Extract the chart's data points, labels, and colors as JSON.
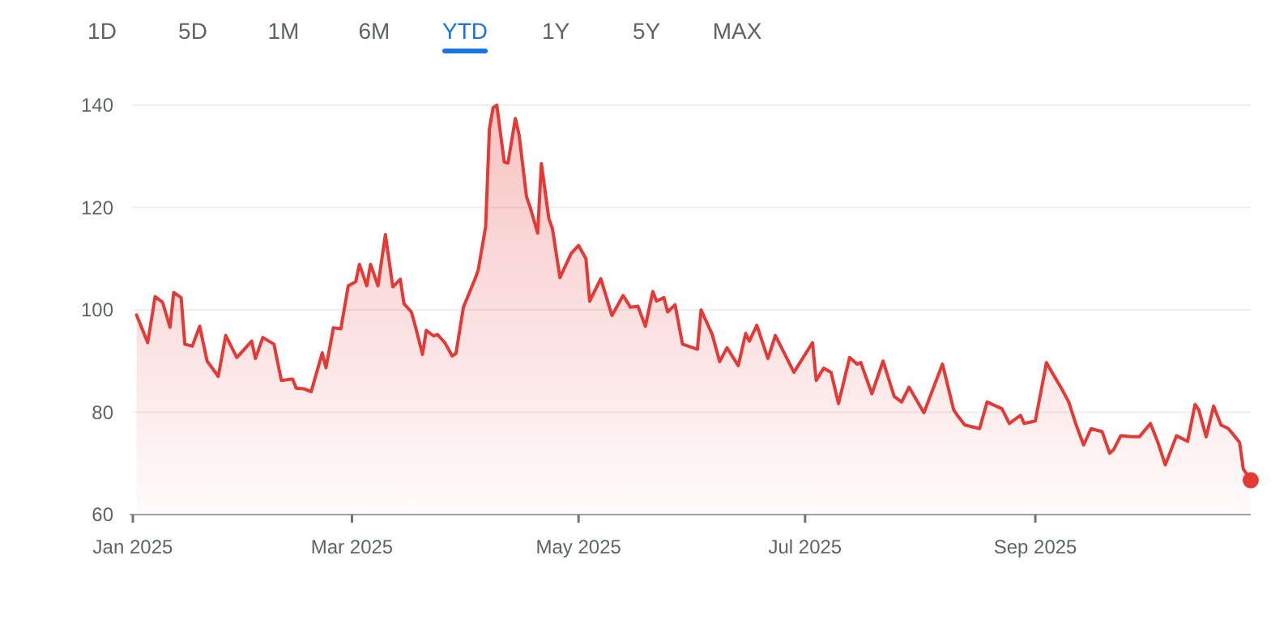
{
  "chart_data": {
    "type": "area",
    "x": [
      "2025-01-02",
      "2025-01-05",
      "2025-01-07",
      "2025-01-09",
      "2025-01-11",
      "2025-01-12",
      "2025-01-14",
      "2025-01-15",
      "2025-01-17",
      "2025-01-19",
      "2025-01-21",
      "2025-01-24",
      "2025-01-26",
      "2025-01-29",
      "2025-02-02",
      "2025-02-03",
      "2025-02-05",
      "2025-02-08",
      "2025-02-10",
      "2025-02-13",
      "2025-02-14",
      "2025-02-16",
      "2025-02-18",
      "2025-02-21",
      "2025-02-22",
      "2025-02-24",
      "2025-02-26",
      "2025-02-28",
      "2025-03-02",
      "2025-03-03",
      "2025-03-05",
      "2025-03-06",
      "2025-03-08",
      "2025-03-10",
      "2025-03-12",
      "2025-03-14",
      "2025-03-15",
      "2025-03-17",
      "2025-03-18",
      "2025-03-20",
      "2025-03-21",
      "2025-03-23",
      "2025-03-24",
      "2025-03-26",
      "2025-03-28",
      "2025-03-29",
      "2025-03-31",
      "2025-04-03",
      "2025-04-04",
      "2025-04-06",
      "2025-04-07",
      "2025-04-08",
      "2025-04-09",
      "2025-04-11",
      "2025-04-12",
      "2025-04-14",
      "2025-04-15",
      "2025-04-17",
      "2025-04-18",
      "2025-04-20",
      "2025-04-21",
      "2025-04-23",
      "2025-04-24",
      "2025-04-26",
      "2025-04-29",
      "2025-05-01",
      "2025-05-03",
      "2025-05-04",
      "2025-05-07",
      "2025-05-10",
      "2025-05-13",
      "2025-05-15",
      "2025-05-17",
      "2025-05-19",
      "2025-05-21",
      "2025-05-22",
      "2025-05-24",
      "2025-05-25",
      "2025-05-27",
      "2025-05-29",
      "2025-06-02",
      "2025-06-03",
      "2025-06-06",
      "2025-06-08",
      "2025-06-10",
      "2025-06-13",
      "2025-06-15",
      "2025-06-16",
      "2025-06-18",
      "2025-06-21",
      "2025-06-23",
      "2025-06-28",
      "2025-07-03",
      "2025-07-04",
      "2025-07-06",
      "2025-07-08",
      "2025-07-10",
      "2025-07-13",
      "2025-07-15",
      "2025-07-16",
      "2025-07-19",
      "2025-07-22",
      "2025-07-25",
      "2025-07-27",
      "2025-07-29",
      "2025-08-02",
      "2025-08-07",
      "2025-08-10",
      "2025-08-11",
      "2025-08-13",
      "2025-08-17",
      "2025-08-19",
      "2025-08-23",
      "2025-08-25",
      "2025-08-28",
      "2025-08-29",
      "2025-09-01",
      "2025-09-04",
      "2025-09-05",
      "2025-09-08",
      "2025-09-10",
      "2025-09-12",
      "2025-09-14",
      "2025-09-16",
      "2025-09-19",
      "2025-09-21",
      "2025-09-22",
      "2025-09-24",
      "2025-09-27",
      "2025-09-29",
      "2025-10-02",
      "2025-10-04",
      "2025-10-06",
      "2025-10-09",
      "2025-10-12",
      "2025-10-14",
      "2025-10-15",
      "2025-10-17",
      "2025-10-19",
      "2025-10-21",
      "2025-10-23",
      "2025-10-26",
      "2025-10-27",
      "2025-10-29"
    ],
    "series": [
      {
        "color": "#e53935",
        "values": [
          99,
          93.6,
          102.6,
          101.5,
          96.6,
          103.4,
          102.4,
          93.3,
          92.9,
          96.8,
          90,
          87,
          95,
          90.7,
          93.9,
          90.5,
          94.6,
          93.3,
          86.2,
          86.5,
          84.7,
          84.6,
          84,
          91.6,
          88.7,
          96.5,
          96.3,
          104.7,
          105.5,
          108.9,
          104.7,
          108.9,
          104.7,
          114.7,
          104.5,
          106,
          101.2,
          99.6,
          97,
          91.3,
          96,
          94.9,
          95.2,
          93.6,
          91,
          91.5,
          100.5,
          105.8,
          107.8,
          116.3,
          135.3,
          139.5,
          140,
          128.9,
          128.7,
          137.4,
          134.2,
          122.1,
          120,
          115,
          128.6,
          117.9,
          115.8,
          106.3,
          111,
          112.6,
          110,
          101.7,
          106.1,
          98.9,
          102.8,
          100.5,
          100.7,
          96.8,
          103.6,
          101.7,
          102.4,
          99.6,
          101,
          93.3,
          92.3,
          100,
          95.2,
          89.9,
          92.6,
          89.1,
          95.4,
          93.9,
          97,
          90.5,
          95,
          87.8,
          93.6,
          86.2,
          88.6,
          87.8,
          81.7,
          90.7,
          89.4,
          89.7,
          83.6,
          90,
          83.1,
          82,
          84.9,
          79.9,
          89.4,
          80.5,
          79.4,
          77.5,
          76.8,
          82,
          80.7,
          77.8,
          79.4,
          77.8,
          78.3,
          89.7,
          88.4,
          84.7,
          82,
          77.5,
          73.6,
          76.8,
          76.2,
          72,
          72.6,
          75.4,
          75.2,
          75.2,
          77.8,
          74.1,
          69.7,
          75.4,
          74.3,
          81.5,
          80.5,
          75.2,
          81.2,
          77.5,
          76.8,
          74.1,
          68.9,
          66.7
        ]
      },
      {
        "type": "scatter",
        "color": "#e53935",
        "x": [
          "2025-10-29"
        ],
        "values": [
          66.7
        ]
      }
    ],
    "xlim": [
      "2025-01-01",
      "2025-10-29"
    ],
    "xticks": [
      {
        "value": "2025-01-01",
        "label": "Jan 2025"
      },
      {
        "value": "2025-03-01",
        "label": "Mar 2025"
      },
      {
        "value": "2025-05-01",
        "label": "May 2025"
      },
      {
        "value": "2025-07-01",
        "label": "Jul 2025"
      },
      {
        "value": "2025-09-01",
        "label": "Sep 2025"
      }
    ],
    "ylim": [
      60,
      140
    ],
    "yticks": [
      60,
      80,
      100,
      120,
      140
    ],
    "grid": "y",
    "annotations": [
      "1D",
      "5D",
      "1M",
      "6M",
      "YTD",
      "1Y",
      "5Y",
      "MAX"
    ]
  }
}
